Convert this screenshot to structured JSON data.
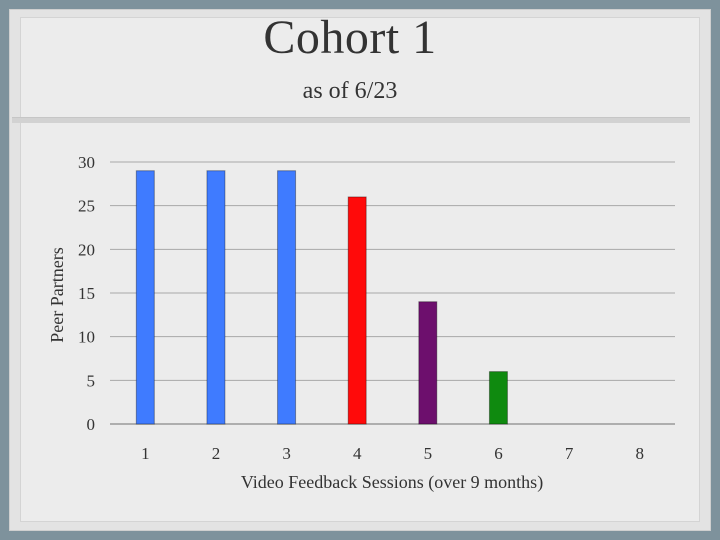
{
  "slide": {
    "title": "Cohort 1",
    "subtitle": "as of 6/23"
  },
  "chart_data": {
    "type": "bar",
    "xlabel": "Video Feedback Sessions (over 9 months)",
    "ylabel": "Peer Partners",
    "categories": [
      "1",
      "2",
      "3",
      "4",
      "5",
      "6",
      "7",
      "8"
    ],
    "values": [
      29,
      29,
      29,
      26,
      14,
      6,
      0,
      0
    ],
    "colors": [
      "#3f7bff",
      "#3f7bff",
      "#3f7bff",
      "#ff0a0a",
      "#6d0f6d",
      "#0f8a0f",
      "#3f7bff",
      "#3f7bff"
    ],
    "ylim": [
      0,
      30
    ],
    "yticks": [
      0,
      5,
      10,
      15,
      20,
      25,
      30
    ],
    "grid": true,
    "legend": "none"
  }
}
